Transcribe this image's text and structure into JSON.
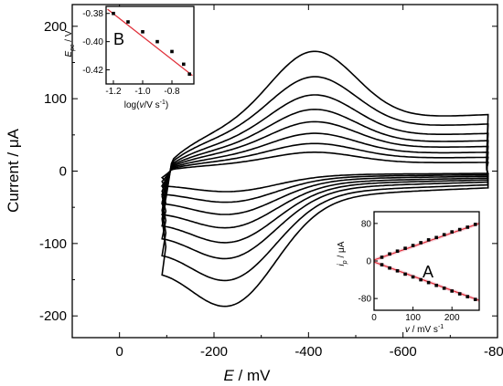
{
  "chart_data": [
    {
      "type": "line",
      "title": "",
      "xlabel_var": "E",
      "xlabel_unit": " / mV",
      "ylabel": "Current / μA",
      "xlim": [
        100,
        -800
      ],
      "ylim": [
        -230,
        230
      ],
      "x_ticks": [
        0,
        -200,
        -400,
        -600,
        -800
      ],
      "x_tick_labels": [
        "0",
        "-200",
        "-400",
        "-600",
        "-800"
      ],
      "y_ticks": [
        200,
        100,
        0,
        -100,
        -200
      ],
      "y_tick_labels": [
        "200",
        "100",
        "0",
        "-100",
        "-200"
      ],
      "series": [
        {
          "anodic_peak": 165,
          "cathodic_peak": -155,
          "base_plateau": 78,
          "base_low": -110
        },
        {
          "anodic_peak": 130,
          "cathodic_peak": -125,
          "base_plateau": 65,
          "base_low": -90
        },
        {
          "anodic_peak": 105,
          "cathodic_peak": -100,
          "base_plateau": 52,
          "base_low": -72
        },
        {
          "anodic_peak": 85,
          "cathodic_peak": -82,
          "base_plateau": 42,
          "base_low": -58
        },
        {
          "anodic_peak": 68,
          "cathodic_peak": -65,
          "base_plateau": 34,
          "base_low": -46
        },
        {
          "anodic_peak": 52,
          "cathodic_peak": -50,
          "base_plateau": 26,
          "base_low": -34
        },
        {
          "anodic_peak": 38,
          "cathodic_peak": -36,
          "base_plateau": 19,
          "base_low": -24
        },
        {
          "anodic_peak": 26,
          "cathodic_peak": -24,
          "base_plateau": 12,
          "base_low": -15
        }
      ]
    },
    {
      "type": "scatter",
      "panel_label": "A",
      "xlabel_var": "v",
      "xlabel_unit": " / mV s",
      "xlabel_sup": "-1",
      "ylabel_var": "i",
      "ylabel_sub": "p",
      "ylabel_unit": " / μA",
      "xlim": [
        0,
        270
      ],
      "ylim": [
        -105,
        105
      ],
      "x_ticks": [
        0,
        100,
        200
      ],
      "x_tick_labels": [
        "0",
        "100",
        "200"
      ],
      "y_ticks": [
        80,
        0,
        -80
      ],
      "y_tick_labels": [
        "80",
        "0",
        "-80"
      ],
      "anodic_points": [
        [
          20,
          8
        ],
        [
          40,
          15
        ],
        [
          60,
          21
        ],
        [
          80,
          27
        ],
        [
          100,
          33
        ],
        [
          120,
          39
        ],
        [
          140,
          45
        ],
        [
          160,
          50
        ],
        [
          180,
          56
        ],
        [
          200,
          62
        ],
        [
          220,
          67
        ],
        [
          240,
          72
        ],
        [
          260,
          78
        ]
      ],
      "cathodic_points": [
        [
          20,
          -8
        ],
        [
          40,
          -15
        ],
        [
          60,
          -21
        ],
        [
          80,
          -28
        ],
        [
          100,
          -34
        ],
        [
          120,
          -40
        ],
        [
          140,
          -46
        ],
        [
          160,
          -52
        ],
        [
          180,
          -58
        ],
        [
          200,
          -64
        ],
        [
          220,
          -70
        ],
        [
          240,
          -76
        ],
        [
          260,
          -82
        ]
      ],
      "anodic_fit": [
        [
          0,
          2
        ],
        [
          270,
          80
        ]
      ],
      "cathodic_fit": [
        [
          0,
          -2
        ],
        [
          270,
          -84
        ]
      ]
    },
    {
      "type": "scatter",
      "panel_label": "B",
      "xlabel_pre": "log(",
      "xlabel_var": "v",
      "xlabel_mid": "/V s",
      "xlabel_sup": "-1",
      "xlabel_post": ")",
      "ylabel_var": "E",
      "ylabel_sub": "pc",
      "ylabel_unit": " / V",
      "xlim": [
        -1.25,
        -0.65
      ],
      "ylim": [
        -0.43,
        -0.375
      ],
      "x_ticks": [
        -1.2,
        -1.0,
        -0.8
      ],
      "x_tick_labels": [
        "-1.2",
        "-1.0",
        "-0.8"
      ],
      "y_ticks": [
        -0.38,
        -0.4,
        -0.42
      ],
      "y_tick_labels": [
        "-0.38",
        "-0.40",
        "-0.42"
      ],
      "points": [
        [
          -1.2,
          -0.38
        ],
        [
          -1.1,
          -0.386
        ],
        [
          -1.0,
          -0.393
        ],
        [
          -0.9,
          -0.4
        ],
        [
          -0.8,
          -0.407
        ],
        [
          -0.72,
          -0.416
        ],
        [
          -0.68,
          -0.423
        ]
      ],
      "fit": [
        [
          -1.24,
          -0.377
        ],
        [
          -0.66,
          -0.424
        ]
      ]
    }
  ]
}
